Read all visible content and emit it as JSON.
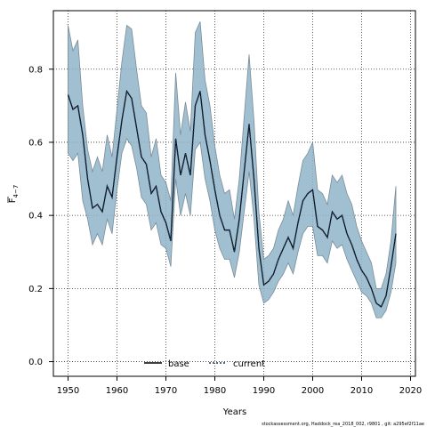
{
  "chart_data": {
    "type": "line",
    "xlabel": "Years",
    "ylabel_main": "F",
    "ylabel_sub": "4−7",
    "xlim": [
      1947,
      2021
    ],
    "ylim": [
      -0.04,
      0.96
    ],
    "xticks": [
      1950,
      1960,
      1970,
      1980,
      1990,
      2000,
      2010,
      2020
    ],
    "yticks": [
      0.0,
      0.2,
      0.4,
      0.6,
      0.8
    ],
    "ytick_labels": [
      "0.0",
      "0.2",
      "0.4",
      "0.6",
      "0.8"
    ],
    "grid": true,
    "legend_position": "bottom-center",
    "legend": [
      {
        "label": "base",
        "style": "solid",
        "color": "#000000"
      },
      {
        "label": "current",
        "style": "dotted",
        "color": "#1f3a5a"
      }
    ],
    "band_color": "#8fb4c9",
    "band_edge_color": "#7a8c99",
    "footer": "stockassessment.org, Haddock_rea_2018_002, r9801 , git: a295ef2f11ae",
    "x": [
      1950,
      1951,
      1952,
      1953,
      1954,
      1955,
      1956,
      1957,
      1958,
      1959,
      1960,
      1961,
      1962,
      1963,
      1964,
      1965,
      1966,
      1967,
      1968,
      1969,
      1970,
      1971,
      1972,
      1973,
      1974,
      1975,
      1976,
      1977,
      1978,
      1979,
      1980,
      1981,
      1982,
      1983,
      1984,
      1985,
      1986,
      1987,
      1988,
      1989,
      1990,
      1991,
      1992,
      1993,
      1994,
      1995,
      1996,
      1997,
      1998,
      1999,
      2000,
      2001,
      2002,
      2003,
      2004,
      2005,
      2006,
      2007,
      2008,
      2009,
      2010,
      2011,
      2012,
      2013,
      2014,
      2015,
      2016,
      2017
    ],
    "series": [
      {
        "name": "base",
        "values": [
          0.73,
          0.69,
          0.7,
          0.62,
          0.5,
          0.42,
          0.43,
          0.41,
          0.48,
          0.45,
          0.56,
          0.66,
          0.74,
          0.72,
          0.64,
          0.56,
          0.54,
          0.46,
          0.48,
          0.41,
          0.38,
          0.33,
          0.61,
          0.51,
          0.57,
          0.51,
          0.7,
          0.74,
          0.62,
          0.55,
          0.47,
          0.4,
          0.36,
          0.36,
          0.3,
          0.39,
          0.52,
          0.65,
          0.5,
          0.31,
          0.21,
          0.22,
          0.24,
          0.28,
          0.31,
          0.34,
          0.31,
          0.38,
          0.44,
          0.46,
          0.47,
          0.37,
          0.36,
          0.34,
          0.41,
          0.39,
          0.4,
          0.35,
          0.32,
          0.28,
          0.25,
          0.23,
          0.2,
          0.16,
          0.15,
          0.18,
          0.26,
          0.35
        ]
      },
      {
        "name": "current",
        "values": [
          0.73,
          0.69,
          0.7,
          0.62,
          0.5,
          0.42,
          0.43,
          0.41,
          0.48,
          0.45,
          0.56,
          0.66,
          0.74,
          0.72,
          0.64,
          0.56,
          0.54,
          0.46,
          0.48,
          0.41,
          0.38,
          0.33,
          0.61,
          0.51,
          0.57,
          0.51,
          0.7,
          0.74,
          0.62,
          0.55,
          0.47,
          0.4,
          0.36,
          0.36,
          0.3,
          0.39,
          0.52,
          0.65,
          0.5,
          0.31,
          0.21,
          0.22,
          0.24,
          0.28,
          0.31,
          0.34,
          0.31,
          0.38,
          0.44,
          0.46,
          0.47,
          0.37,
          0.36,
          0.34,
          0.41,
          0.39,
          0.4,
          0.35,
          0.32,
          0.28,
          0.25,
          0.23,
          0.2,
          0.16,
          0.15,
          0.18,
          0.26,
          0.35
        ]
      }
    ],
    "upper": [
      0.92,
      0.85,
      0.88,
      0.7,
      0.58,
      0.52,
      0.56,
      0.52,
      0.62,
      0.56,
      0.69,
      0.82,
      0.92,
      0.91,
      0.8,
      0.7,
      0.68,
      0.56,
      0.61,
      0.51,
      0.49,
      0.44,
      0.79,
      0.62,
      0.71,
      0.63,
      0.9,
      0.93,
      0.77,
      0.7,
      0.59,
      0.51,
      0.46,
      0.47,
      0.39,
      0.5,
      0.67,
      0.84,
      0.66,
      0.41,
      0.28,
      0.29,
      0.31,
      0.36,
      0.39,
      0.44,
      0.4,
      0.48,
      0.55,
      0.57,
      0.6,
      0.47,
      0.46,
      0.43,
      0.51,
      0.49,
      0.51,
      0.46,
      0.43,
      0.37,
      0.33,
      0.3,
      0.27,
      0.2,
      0.2,
      0.24,
      0.33,
      0.48
    ],
    "lower": [
      0.57,
      0.55,
      0.57,
      0.44,
      0.39,
      0.32,
      0.35,
      0.32,
      0.39,
      0.35,
      0.47,
      0.57,
      0.61,
      0.59,
      0.53,
      0.45,
      0.43,
      0.36,
      0.38,
      0.32,
      0.31,
      0.26,
      0.5,
      0.4,
      0.46,
      0.4,
      0.58,
      0.6,
      0.5,
      0.44,
      0.36,
      0.31,
      0.28,
      0.28,
      0.23,
      0.3,
      0.41,
      0.52,
      0.39,
      0.21,
      0.16,
      0.17,
      0.19,
      0.22,
      0.24,
      0.27,
      0.24,
      0.3,
      0.35,
      0.37,
      0.37,
      0.29,
      0.29,
      0.27,
      0.33,
      0.31,
      0.32,
      0.28,
      0.25,
      0.22,
      0.19,
      0.18,
      0.16,
      0.12,
      0.12,
      0.14,
      0.19,
      0.27
    ]
  }
}
